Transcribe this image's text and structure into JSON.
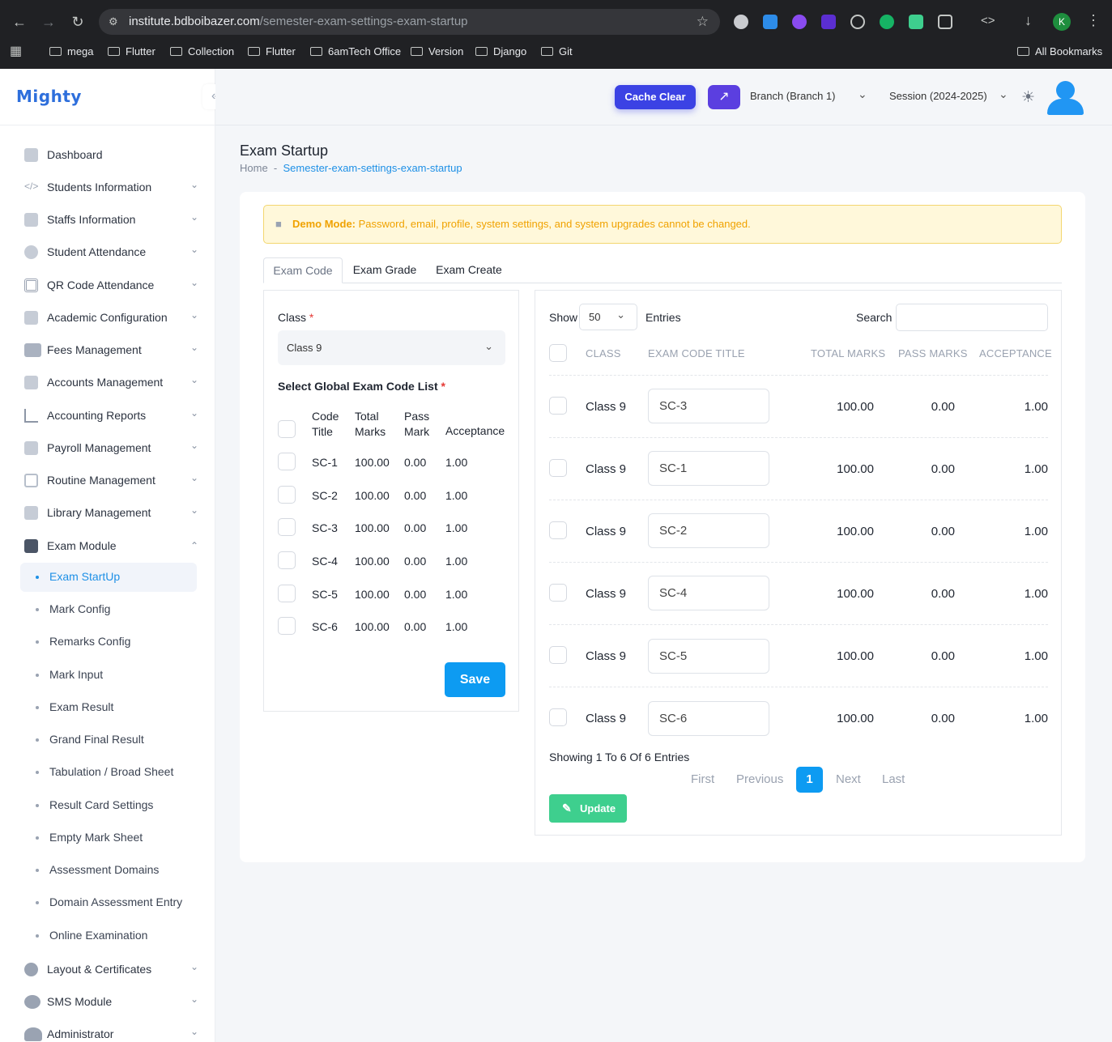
{
  "browser": {
    "url_host": "institute.bdboibazer.com",
    "url_path": "/semester-exam-settings-exam-startup",
    "profile_initial": "K",
    "bookmarks": [
      "mega",
      "Flutter",
      "Collection",
      "Flutter",
      "6amTech Office",
      "Version",
      "Django",
      "Git"
    ],
    "all_bookmarks": "All Bookmarks"
  },
  "app": {
    "logo": "Mighty",
    "cache_clear": "Cache Clear",
    "branch": "Branch (Branch 1)",
    "session": "Session (2024-2025)"
  },
  "sidebar": {
    "items": [
      {
        "label": "Dashboard",
        "icon": "dashboard-icon"
      },
      {
        "label": "Students Information",
        "icon": "code-icon"
      },
      {
        "label": "Staffs Information",
        "icon": "id-card-icon"
      },
      {
        "label": "Student Attendance",
        "icon": "fingerprint-icon"
      },
      {
        "label": "QR Code Attendance",
        "icon": "qr-code-icon"
      },
      {
        "label": "Academic Configuration",
        "icon": "drive-icon"
      },
      {
        "label": "Fees Management",
        "icon": "money-icon"
      },
      {
        "label": "Accounts Management",
        "icon": "bank-icon"
      },
      {
        "label": "Accounting Reports",
        "icon": "line-chart-icon"
      },
      {
        "label": "Payroll Management",
        "icon": "payroll-icon"
      },
      {
        "label": "Routine Management",
        "icon": "map-icon"
      },
      {
        "label": "Library Management",
        "icon": "library-icon"
      },
      {
        "label": "Exam Module",
        "icon": "layout-icon"
      }
    ],
    "exam_sub": [
      "Exam StartUp",
      "Mark Config",
      "Remarks Config",
      "Mark Input",
      "Exam Result",
      "Grand Final Result",
      "Tabulation / Broad Sheet",
      "Result Card Settings",
      "Empty Mark Sheet",
      "Assessment Domains",
      "Domain Assessment Entry",
      "Online Examination"
    ],
    "bottom_items": [
      {
        "label": "Layout & Certificates",
        "icon": "gear-icon"
      },
      {
        "label": "SMS Module",
        "icon": "sms-icon"
      },
      {
        "label": "Administrator",
        "icon": "admin-icon"
      }
    ]
  },
  "page": {
    "title": "Exam Startup",
    "breadcrumb_home": "Home",
    "breadcrumb_sep": "-",
    "breadcrumb_current": "Semester-exam-settings-exam-startup",
    "demo_label": "Demo Mode:",
    "demo_text": " Password, email, profile, system settings, and system upgrades cannot be changed.",
    "tabs": [
      "Exam Code",
      "Exam Grade",
      "Exam Create"
    ]
  },
  "left_form": {
    "class_label": "Class",
    "required": "*",
    "class_value": "Class 9",
    "list_label": "Select Global Exam Code List",
    "headers": {
      "code": [
        "Code",
        "Title"
      ],
      "total": [
        "Total",
        "Marks"
      ],
      "pass": [
        "Pass",
        "Mark"
      ],
      "acceptance": "Acceptance"
    },
    "rows": [
      {
        "code": "SC-1",
        "total": "100.00",
        "pass": "0.00",
        "acc": "1.00"
      },
      {
        "code": "SC-2",
        "total": "100.00",
        "pass": "0.00",
        "acc": "1.00"
      },
      {
        "code": "SC-3",
        "total": "100.00",
        "pass": "0.00",
        "acc": "1.00"
      },
      {
        "code": "SC-4",
        "total": "100.00",
        "pass": "0.00",
        "acc": "1.00"
      },
      {
        "code": "SC-5",
        "total": "100.00",
        "pass": "0.00",
        "acc": "1.00"
      },
      {
        "code": "SC-6",
        "total": "100.00",
        "pass": "0.00",
        "acc": "1.00"
      }
    ],
    "save": "Save"
  },
  "table": {
    "show": "Show",
    "entries_value": "50",
    "entries": "Entries",
    "search": "Search",
    "headers": [
      "CLASS",
      "EXAM CODE TITLE",
      "TOTAL MARKS",
      "PASS MARKS",
      "ACCEPTANCE"
    ],
    "rows": [
      {
        "class": "Class 9",
        "code": "SC-3",
        "total": "100.00",
        "pass": "0.00",
        "acc": "1.00"
      },
      {
        "class": "Class 9",
        "code": "SC-1",
        "total": "100.00",
        "pass": "0.00",
        "acc": "1.00"
      },
      {
        "class": "Class 9",
        "code": "SC-2",
        "total": "100.00",
        "pass": "0.00",
        "acc": "1.00"
      },
      {
        "class": "Class 9",
        "code": "SC-4",
        "total": "100.00",
        "pass": "0.00",
        "acc": "1.00"
      },
      {
        "class": "Class 9",
        "code": "SC-5",
        "total": "100.00",
        "pass": "0.00",
        "acc": "1.00"
      },
      {
        "class": "Class 9",
        "code": "SC-6",
        "total": "100.00",
        "pass": "0.00",
        "acc": "1.00"
      }
    ],
    "showing": "Showing 1 To 6 Of 6 Entries",
    "pagination": {
      "first": "First",
      "previous": "Previous",
      "current": "1",
      "next": "Next",
      "last": "Last"
    },
    "update": "Update"
  },
  "colors": {
    "accent": "#0d9bf2",
    "cache": "#3b42e4",
    "update": "#3ecf8e",
    "warning": "#f0a200"
  }
}
